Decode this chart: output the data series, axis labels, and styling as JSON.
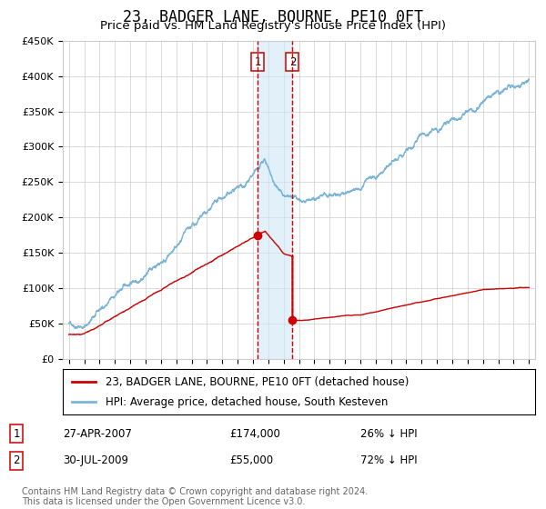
{
  "title": "23, BADGER LANE, BOURNE, PE10 0FT",
  "subtitle": "Price paid vs. HM Land Registry's House Price Index (HPI)",
  "legend_line1": "23, BADGER LANE, BOURNE, PE10 0FT (detached house)",
  "legend_line2": "HPI: Average price, detached house, South Kesteven",
  "footer": "Contains HM Land Registry data © Crown copyright and database right 2024.\nThis data is licensed under the Open Government Licence v3.0.",
  "transactions": [
    {
      "label": "1",
      "date": 2007.32,
      "price": 174000,
      "pct": "26% ↓ HPI"
    },
    {
      "label": "2",
      "date": 2009.58,
      "price": 55000,
      "pct": "72% ↓ HPI"
    }
  ],
  "transaction_dates_str": [
    "27-APR-2007",
    "30-JUL-2009"
  ],
  "transaction_prices_str": [
    "£174,000",
    "£55,000"
  ],
  "ylim": [
    0,
    450000
  ],
  "xlim_start": 1994.6,
  "xlim_end": 2025.4,
  "hpi_color": "#7ab5d9",
  "price_color": "#cc0000",
  "marker_color": "#cc0000",
  "vline_color": "#cc0000",
  "shade_color": "#d0e8f5",
  "grid_color": "#cccccc",
  "bg_color": "#ffffff",
  "title_fontsize": 12,
  "subtitle_fontsize": 9.5,
  "axis_fontsize": 8,
  "legend_fontsize": 8.5,
  "footer_fontsize": 7
}
